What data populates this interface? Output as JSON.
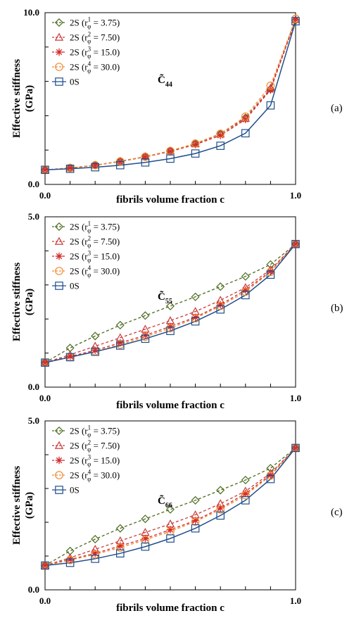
{
  "chart_data": [
    {
      "type": "line",
      "panel_label": "(a)",
      "annotation": {
        "symbol": "C̃",
        "subscript": "44"
      },
      "xlabel": "fibrils volume fraction c",
      "ylabel": [
        "Effective stiffness",
        "(GPa)"
      ],
      "xlim": [
        0,
        1
      ],
      "ylim": [
        0,
        10
      ],
      "xtick_labels": [
        "0.0",
        "1.0"
      ],
      "ytick_labels": [
        "0.0",
        "10.0"
      ],
      "legend_position": "top-left",
      "x": [
        0,
        0.1,
        0.2,
        0.3,
        0.4,
        0.5,
        0.6,
        0.7,
        0.8,
        0.9,
        1.0
      ],
      "series": [
        {
          "name": "2S (r",
          "sup": "1",
          "rest": " = 3.75)",
          "color": "#4a6b1e",
          "marker": "diamond",
          "values": [
            0.85,
            0.95,
            1.12,
            1.35,
            1.62,
            1.95,
            2.38,
            2.95,
            3.88,
            5.55,
            9.55
          ]
        },
        {
          "name": "2S (r",
          "sup": "2",
          "rest": " = 7.50)",
          "color": "#c83c3c",
          "marker": "triangle",
          "values": [
            0.85,
            0.96,
            1.12,
            1.35,
            1.62,
            1.95,
            2.36,
            2.93,
            3.85,
            5.6,
            9.6
          ]
        },
        {
          "name": "2S (r",
          "sup": "3",
          "rest": " = 15.0)",
          "color": "#d42a2a",
          "marker": "star",
          "values": [
            0.85,
            0.95,
            1.11,
            1.33,
            1.6,
            1.92,
            2.32,
            2.85,
            3.78,
            5.5,
            9.6
          ]
        },
        {
          "name": "2S (r",
          "sup": "4",
          "rest": " = 30.0)",
          "color": "#f08a30",
          "marker": "circle",
          "values": [
            0.85,
            0.96,
            1.12,
            1.34,
            1.61,
            1.95,
            2.38,
            2.95,
            3.95,
            5.75,
            9.65
          ]
        },
        {
          "name": "0S",
          "sup": "",
          "rest": "",
          "color": "#1f4e8c",
          "marker": "square",
          "values": [
            0.85,
            0.91,
            1.0,
            1.12,
            1.28,
            1.5,
            1.8,
            2.25,
            2.98,
            4.6,
            9.5
          ]
        }
      ]
    },
    {
      "type": "line",
      "panel_label": "(b)",
      "annotation": {
        "symbol": "C̃",
        "subscript": "55"
      },
      "xlabel": "fibrils volume fraction c",
      "ylabel": [
        "Effective stiffness",
        "(GPa)"
      ],
      "xlim": [
        0,
        1
      ],
      "ylim": [
        0,
        5
      ],
      "xtick_labels": [
        "0.0",
        "1.0"
      ],
      "ytick_labels": [
        "0.0",
        "5.0"
      ],
      "legend_position": "top-left",
      "x": [
        0,
        0.1,
        0.2,
        0.3,
        0.4,
        0.5,
        0.6,
        0.7,
        0.8,
        0.9,
        1.0
      ],
      "series": [
        {
          "name": "2S (r",
          "sup": "1",
          "rest": " = 3.75)",
          "color": "#4a6b1e",
          "marker": "diamond",
          "values": [
            0.72,
            1.15,
            1.5,
            1.82,
            2.1,
            2.38,
            2.65,
            2.95,
            3.25,
            3.6,
            4.2
          ]
        },
        {
          "name": "2S (r",
          "sup": "2",
          "rest": " = 7.50)",
          "color": "#c83c3c",
          "marker": "triangle",
          "values": [
            0.72,
            0.95,
            1.2,
            1.45,
            1.7,
            1.95,
            2.22,
            2.55,
            2.92,
            3.45,
            4.2
          ]
        },
        {
          "name": "2S (r",
          "sup": "3",
          "rest": " = 15.0)",
          "color": "#d42a2a",
          "marker": "star",
          "values": [
            0.72,
            0.9,
            1.08,
            1.3,
            1.52,
            1.78,
            2.05,
            2.42,
            2.85,
            3.4,
            4.2
          ]
        },
        {
          "name": "2S (r",
          "sup": "4",
          "rest": " = 30.0)",
          "color": "#f08a30",
          "marker": "circle",
          "values": [
            0.72,
            0.88,
            1.05,
            1.25,
            1.48,
            1.73,
            2.02,
            2.38,
            2.8,
            3.38,
            4.2
          ]
        },
        {
          "name": "0S",
          "sup": "",
          "rest": "",
          "color": "#1f4e8c",
          "marker": "square",
          "values": [
            0.72,
            0.88,
            1.04,
            1.22,
            1.42,
            1.65,
            1.93,
            2.28,
            2.7,
            3.3,
            4.2
          ]
        }
      ]
    },
    {
      "type": "line",
      "panel_label": "(c)",
      "annotation": {
        "symbol": "C̃",
        "subscript": "66"
      },
      "xlabel": "fibrils volume fraction c",
      "ylabel": [
        "Effective stiffness",
        "(GPa)"
      ],
      "xlim": [
        0,
        1
      ],
      "ylim": [
        0,
        5
      ],
      "xtick_labels": [
        "0.0",
        "1.0"
      ],
      "ytick_labels": [
        "0.0",
        "5.0"
      ],
      "legend_position": "top-left",
      "x": [
        0,
        0.1,
        0.2,
        0.3,
        0.4,
        0.5,
        0.6,
        0.7,
        0.8,
        0.9,
        1.0
      ],
      "series": [
        {
          "name": "2S (r",
          "sup": "1",
          "rest": " = 3.75)",
          "color": "#4a6b1e",
          "marker": "diamond",
          "values": [
            0.72,
            1.15,
            1.5,
            1.82,
            2.1,
            2.38,
            2.65,
            2.95,
            3.25,
            3.6,
            4.2
          ]
        },
        {
          "name": "2S (r",
          "sup": "2",
          "rest": " = 7.50)",
          "color": "#c83c3c",
          "marker": "triangle",
          "values": [
            0.72,
            0.95,
            1.2,
            1.45,
            1.7,
            1.95,
            2.22,
            2.55,
            2.92,
            3.45,
            4.2
          ]
        },
        {
          "name": "2S (r",
          "sup": "3",
          "rest": " = 15.0)",
          "color": "#d42a2a",
          "marker": "star",
          "values": [
            0.72,
            0.9,
            1.08,
            1.3,
            1.52,
            1.78,
            2.05,
            2.42,
            2.85,
            3.4,
            4.2
          ]
        },
        {
          "name": "2S (r",
          "sup": "4",
          "rest": " = 30.0)",
          "color": "#f08a30",
          "marker": "circle",
          "values": [
            0.72,
            0.88,
            1.05,
            1.25,
            1.48,
            1.73,
            2.02,
            2.38,
            2.8,
            3.38,
            4.2
          ]
        },
        {
          "name": "0S",
          "sup": "",
          "rest": "",
          "color": "#1f4e8c",
          "marker": "square",
          "values": [
            0.72,
            0.8,
            0.92,
            1.08,
            1.28,
            1.52,
            1.82,
            2.2,
            2.65,
            3.28,
            4.2
          ]
        }
      ]
    }
  ]
}
